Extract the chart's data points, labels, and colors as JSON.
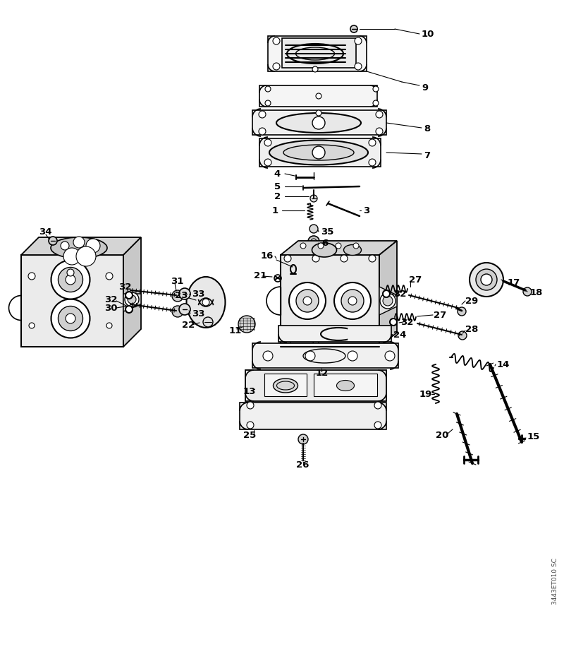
{
  "bg_color": "#ffffff",
  "fig_width": 8.0,
  "fig_height": 9.36,
  "watermark": "3443ET010 SC",
  "label_fontsize": 9.5,
  "label_fontweight": "bold"
}
